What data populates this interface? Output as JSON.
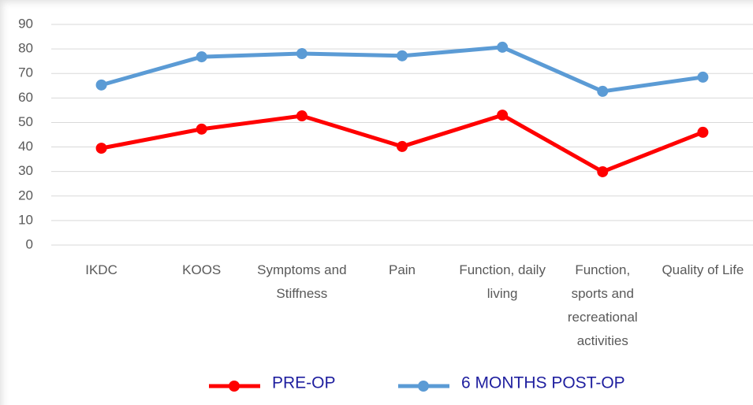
{
  "chart_data": {
    "type": "line",
    "categories": [
      "IKDC",
      "KOOS",
      "Symptoms and Stiffness",
      "Pain",
      "Function, daily living",
      "Function, sports and recreational activities",
      "Quality of Life"
    ],
    "series": [
      {
        "name": "PRE-OP",
        "color": "#ff0000",
        "values": [
          39.5,
          47.3,
          52.7,
          40.2,
          53,
          29.9,
          46
        ]
      },
      {
        "name": "6 MONTHS POST-OP",
        "color": "#5b9bd5",
        "values": [
          65.3,
          76.8,
          78.1,
          77.2,
          80.7,
          62.7,
          68.5
        ]
      }
    ],
    "ylim": [
      0,
      90
    ],
    "yticks": [
      0,
      10,
      20,
      30,
      40,
      50,
      60,
      70,
      80,
      90
    ],
    "grid": true,
    "legend": "bottom"
  }
}
